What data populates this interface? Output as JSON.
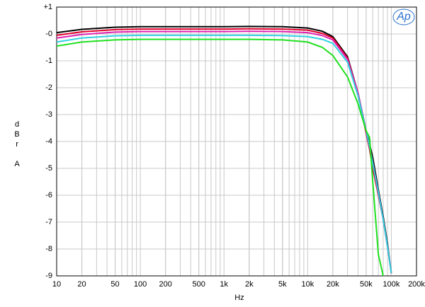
{
  "chart_data": {
    "type": "line",
    "xlabel": "Hz",
    "ylabel": "dBr A",
    "logo": "Ap",
    "log_x": true,
    "grid": true,
    "x": [
      10,
      20,
      50,
      100,
      200,
      500,
      1000,
      2000,
      5000,
      10000,
      15000,
      20000,
      30000,
      40000,
      50000,
      55000,
      60000,
      70000,
      80000,
      90000,
      100000
    ],
    "series": [
      {
        "name": "black",
        "color": "#000000",
        "values": [
          0.05,
          0.17,
          0.25,
          0.27,
          0.27,
          0.27,
          0.27,
          0.28,
          0.27,
          0.22,
          0.1,
          -0.1,
          -0.85,
          -2.2,
          -3.6,
          -4.1,
          -4.6,
          -5.8,
          -6.8,
          -7.8,
          -8.9
        ]
      },
      {
        "name": "red",
        "color": "#e0002a",
        "values": [
          -0.05,
          0.08,
          0.16,
          0.18,
          0.18,
          0.18,
          0.18,
          0.19,
          0.18,
          0.14,
          0.02,
          -0.15,
          -0.9,
          -2.2,
          -3.7,
          -4.3,
          -5.0,
          -6.0,
          -6.9,
          -7.9,
          -8.9
        ]
      },
      {
        "name": "magenta",
        "color": "#e020b0",
        "values": [
          -0.15,
          -0.02,
          0.07,
          0.09,
          0.09,
          0.09,
          0.09,
          0.1,
          0.09,
          0.05,
          -0.06,
          -0.22,
          -0.95,
          -2.2,
          -3.6,
          -4.2,
          -4.8,
          -5.9,
          -6.9,
          -7.9,
          -8.9
        ]
      },
      {
        "name": "cyan",
        "color": "#30d0e0",
        "values": [
          -0.3,
          -0.15,
          -0.07,
          -0.05,
          -0.05,
          -0.05,
          -0.05,
          -0.05,
          -0.06,
          -0.1,
          -0.2,
          -0.35,
          -1.05,
          -2.3,
          -3.6,
          -4.2,
          -4.8,
          -5.9,
          -6.9,
          -7.9,
          -8.9
        ]
      },
      {
        "name": "green",
        "color": "#20e020",
        "values": [
          -0.45,
          -0.3,
          -0.22,
          -0.2,
          -0.2,
          -0.2,
          -0.2,
          -0.2,
          -0.22,
          -0.3,
          -0.5,
          -0.8,
          -1.6,
          -2.6,
          -3.6,
          -3.85,
          -5.5,
          -8.2,
          -9,
          null,
          null
        ]
      }
    ],
    "xlim": [
      10,
      200000
    ],
    "xticks": [
      10,
      20,
      50,
      100,
      200,
      500,
      {
        "value": 1000,
        "label": "1k"
      },
      {
        "value": 2000,
        "label": "2k"
      },
      {
        "value": 5000,
        "label": "5k"
      },
      {
        "value": 10000,
        "label": "10k"
      },
      {
        "value": 20000,
        "label": "20k"
      },
      {
        "value": 50000,
        "label": "50k"
      },
      {
        "value": 100000,
        "label": "100k"
      },
      {
        "value": 200000,
        "label": "200k"
      }
    ],
    "ylim": [
      -9,
      1
    ],
    "yticks": [
      {
        "value": 1,
        "label": "+1"
      },
      {
        "value": 0,
        "label": "-0"
      },
      -1,
      -2,
      -3,
      -4,
      -5,
      -6,
      -7,
      -8,
      -9
    ]
  }
}
